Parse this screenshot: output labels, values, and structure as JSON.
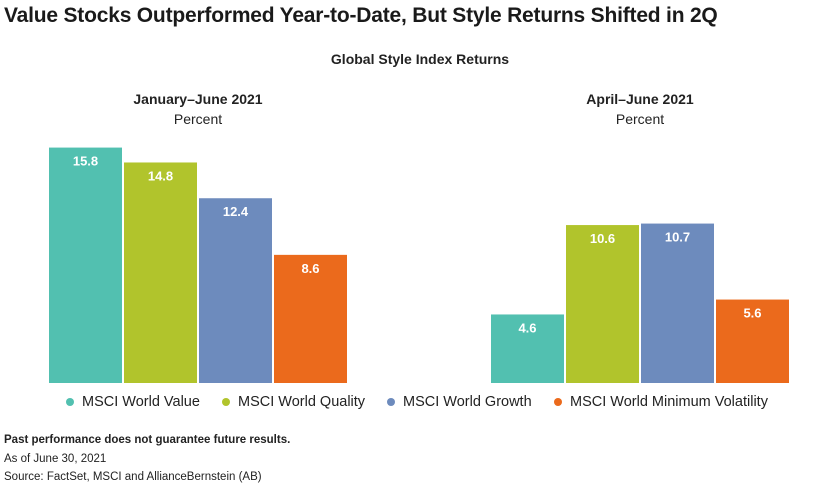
{
  "headline": "Value Stocks Outperformed Year-to-Date, But Style Returns Shifted in 2Q",
  "chart_title": "Global Style Index Returns",
  "chart_data": [
    {
      "type": "bar",
      "title": "January–June 2021",
      "ylabel": "Percent",
      "categories": [
        "MSCI World Value",
        "MSCI World Quality",
        "MSCI World Growth",
        "MSCI World Minimum Volatility"
      ],
      "values": [
        15.8,
        14.8,
        12.4,
        8.6
      ],
      "value_labels": [
        "15.8",
        "14.8",
        "12.4",
        "8.6"
      ],
      "ylim": [
        0,
        16
      ],
      "grid": false
    },
    {
      "type": "bar",
      "title": "April–June 2021",
      "ylabel": "Percent",
      "categories": [
        "MSCI World Value",
        "MSCI World Quality",
        "MSCI World Growth",
        "MSCI World Minimum Volatility"
      ],
      "values": [
        4.6,
        10.6,
        10.7,
        5.6
      ],
      "value_labels": [
        "4.6",
        "10.6",
        "10.7",
        "5.6"
      ],
      "ylim": [
        0,
        16
      ],
      "grid": false
    }
  ],
  "colors": [
    "#52c0b0",
    "#b1c42c",
    "#6d8bbd",
    "#eb6a1c"
  ],
  "legend": [
    {
      "label": "MSCI World Value",
      "color": "#52c0b0"
    },
    {
      "label": "MSCI World Quality",
      "color": "#b1c42c"
    },
    {
      "label": "MSCI World Growth",
      "color": "#6d8bbd"
    },
    {
      "label": "MSCI World Minimum Volatility",
      "color": "#eb6a1c"
    }
  ],
  "notes": {
    "disclaimer": "Past performance does not guarantee future results.",
    "date": "As of June 30, 2021",
    "source": "Source: FactSet, MSCI and AllianceBernstein (AB)"
  }
}
